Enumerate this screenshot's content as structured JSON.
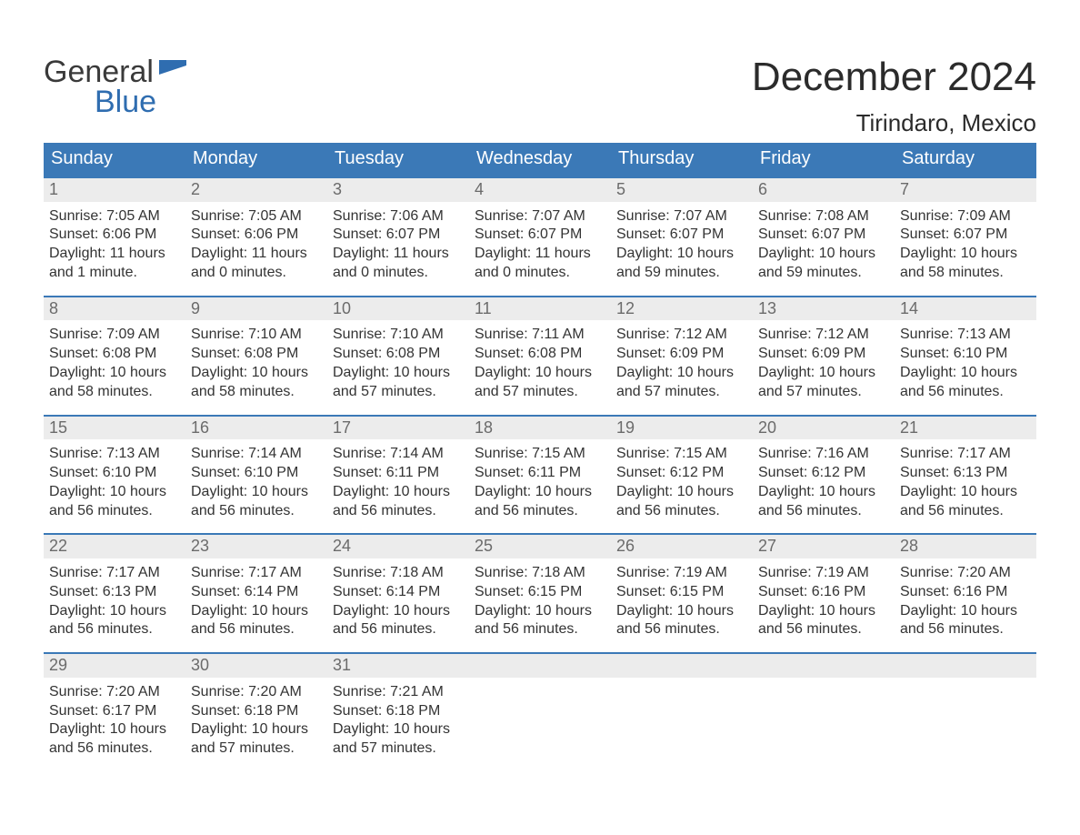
{
  "logo": {
    "word1": "General",
    "word2": "Blue",
    "word1_color": "#3a3a3a",
    "word2_color": "#2f6db0",
    "flag_color": "#2f6db0"
  },
  "header": {
    "title": "December 2024",
    "location": "Tirindaro, Mexico",
    "title_fontsize": 44,
    "location_fontsize": 26,
    "text_color": "#2b2b2b"
  },
  "calendar": {
    "header_bg": "#3b79b7",
    "header_text_color": "#ffffff",
    "week_border_color": "#3b79b7",
    "daynum_bg": "#ececec",
    "daynum_color": "#6b6b6b",
    "body_text_color": "#333333",
    "day_names": [
      "Sunday",
      "Monday",
      "Tuesday",
      "Wednesday",
      "Thursday",
      "Friday",
      "Saturday"
    ],
    "weeks": [
      [
        {
          "num": "1",
          "sunrise": "Sunrise: 7:05 AM",
          "sunset": "Sunset: 6:06 PM",
          "daylight1": "Daylight: 11 hours",
          "daylight2": "and 1 minute."
        },
        {
          "num": "2",
          "sunrise": "Sunrise: 7:05 AM",
          "sunset": "Sunset: 6:06 PM",
          "daylight1": "Daylight: 11 hours",
          "daylight2": "and 0 minutes."
        },
        {
          "num": "3",
          "sunrise": "Sunrise: 7:06 AM",
          "sunset": "Sunset: 6:07 PM",
          "daylight1": "Daylight: 11 hours",
          "daylight2": "and 0 minutes."
        },
        {
          "num": "4",
          "sunrise": "Sunrise: 7:07 AM",
          "sunset": "Sunset: 6:07 PM",
          "daylight1": "Daylight: 11 hours",
          "daylight2": "and 0 minutes."
        },
        {
          "num": "5",
          "sunrise": "Sunrise: 7:07 AM",
          "sunset": "Sunset: 6:07 PM",
          "daylight1": "Daylight: 10 hours",
          "daylight2": "and 59 minutes."
        },
        {
          "num": "6",
          "sunrise": "Sunrise: 7:08 AM",
          "sunset": "Sunset: 6:07 PM",
          "daylight1": "Daylight: 10 hours",
          "daylight2": "and 59 minutes."
        },
        {
          "num": "7",
          "sunrise": "Sunrise: 7:09 AM",
          "sunset": "Sunset: 6:07 PM",
          "daylight1": "Daylight: 10 hours",
          "daylight2": "and 58 minutes."
        }
      ],
      [
        {
          "num": "8",
          "sunrise": "Sunrise: 7:09 AM",
          "sunset": "Sunset: 6:08 PM",
          "daylight1": "Daylight: 10 hours",
          "daylight2": "and 58 minutes."
        },
        {
          "num": "9",
          "sunrise": "Sunrise: 7:10 AM",
          "sunset": "Sunset: 6:08 PM",
          "daylight1": "Daylight: 10 hours",
          "daylight2": "and 58 minutes."
        },
        {
          "num": "10",
          "sunrise": "Sunrise: 7:10 AM",
          "sunset": "Sunset: 6:08 PM",
          "daylight1": "Daylight: 10 hours",
          "daylight2": "and 57 minutes."
        },
        {
          "num": "11",
          "sunrise": "Sunrise: 7:11 AM",
          "sunset": "Sunset: 6:08 PM",
          "daylight1": "Daylight: 10 hours",
          "daylight2": "and 57 minutes."
        },
        {
          "num": "12",
          "sunrise": "Sunrise: 7:12 AM",
          "sunset": "Sunset: 6:09 PM",
          "daylight1": "Daylight: 10 hours",
          "daylight2": "and 57 minutes."
        },
        {
          "num": "13",
          "sunrise": "Sunrise: 7:12 AM",
          "sunset": "Sunset: 6:09 PM",
          "daylight1": "Daylight: 10 hours",
          "daylight2": "and 57 minutes."
        },
        {
          "num": "14",
          "sunrise": "Sunrise: 7:13 AM",
          "sunset": "Sunset: 6:10 PM",
          "daylight1": "Daylight: 10 hours",
          "daylight2": "and 56 minutes."
        }
      ],
      [
        {
          "num": "15",
          "sunrise": "Sunrise: 7:13 AM",
          "sunset": "Sunset: 6:10 PM",
          "daylight1": "Daylight: 10 hours",
          "daylight2": "and 56 minutes."
        },
        {
          "num": "16",
          "sunrise": "Sunrise: 7:14 AM",
          "sunset": "Sunset: 6:10 PM",
          "daylight1": "Daylight: 10 hours",
          "daylight2": "and 56 minutes."
        },
        {
          "num": "17",
          "sunrise": "Sunrise: 7:14 AM",
          "sunset": "Sunset: 6:11 PM",
          "daylight1": "Daylight: 10 hours",
          "daylight2": "and 56 minutes."
        },
        {
          "num": "18",
          "sunrise": "Sunrise: 7:15 AM",
          "sunset": "Sunset: 6:11 PM",
          "daylight1": "Daylight: 10 hours",
          "daylight2": "and 56 minutes."
        },
        {
          "num": "19",
          "sunrise": "Sunrise: 7:15 AM",
          "sunset": "Sunset: 6:12 PM",
          "daylight1": "Daylight: 10 hours",
          "daylight2": "and 56 minutes."
        },
        {
          "num": "20",
          "sunrise": "Sunrise: 7:16 AM",
          "sunset": "Sunset: 6:12 PM",
          "daylight1": "Daylight: 10 hours",
          "daylight2": "and 56 minutes."
        },
        {
          "num": "21",
          "sunrise": "Sunrise: 7:17 AM",
          "sunset": "Sunset: 6:13 PM",
          "daylight1": "Daylight: 10 hours",
          "daylight2": "and 56 minutes."
        }
      ],
      [
        {
          "num": "22",
          "sunrise": "Sunrise: 7:17 AM",
          "sunset": "Sunset: 6:13 PM",
          "daylight1": "Daylight: 10 hours",
          "daylight2": "and 56 minutes."
        },
        {
          "num": "23",
          "sunrise": "Sunrise: 7:17 AM",
          "sunset": "Sunset: 6:14 PM",
          "daylight1": "Daylight: 10 hours",
          "daylight2": "and 56 minutes."
        },
        {
          "num": "24",
          "sunrise": "Sunrise: 7:18 AM",
          "sunset": "Sunset: 6:14 PM",
          "daylight1": "Daylight: 10 hours",
          "daylight2": "and 56 minutes."
        },
        {
          "num": "25",
          "sunrise": "Sunrise: 7:18 AM",
          "sunset": "Sunset: 6:15 PM",
          "daylight1": "Daylight: 10 hours",
          "daylight2": "and 56 minutes."
        },
        {
          "num": "26",
          "sunrise": "Sunrise: 7:19 AM",
          "sunset": "Sunset: 6:15 PM",
          "daylight1": "Daylight: 10 hours",
          "daylight2": "and 56 minutes."
        },
        {
          "num": "27",
          "sunrise": "Sunrise: 7:19 AM",
          "sunset": "Sunset: 6:16 PM",
          "daylight1": "Daylight: 10 hours",
          "daylight2": "and 56 minutes."
        },
        {
          "num": "28",
          "sunrise": "Sunrise: 7:20 AM",
          "sunset": "Sunset: 6:16 PM",
          "daylight1": "Daylight: 10 hours",
          "daylight2": "and 56 minutes."
        }
      ],
      [
        {
          "num": "29",
          "sunrise": "Sunrise: 7:20 AM",
          "sunset": "Sunset: 6:17 PM",
          "daylight1": "Daylight: 10 hours",
          "daylight2": "and 56 minutes."
        },
        {
          "num": "30",
          "sunrise": "Sunrise: 7:20 AM",
          "sunset": "Sunset: 6:18 PM",
          "daylight1": "Daylight: 10 hours",
          "daylight2": "and 57 minutes."
        },
        {
          "num": "31",
          "sunrise": "Sunrise: 7:21 AM",
          "sunset": "Sunset: 6:18 PM",
          "daylight1": "Daylight: 10 hours",
          "daylight2": "and 57 minutes."
        },
        {
          "empty": true
        },
        {
          "empty": true
        },
        {
          "empty": true
        },
        {
          "empty": true
        }
      ]
    ]
  }
}
